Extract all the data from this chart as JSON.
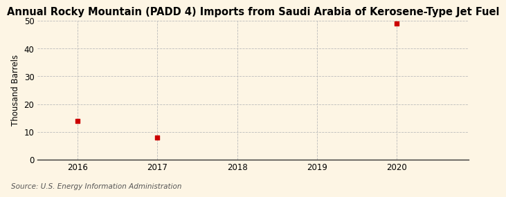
{
  "title": "Annual Rocky Mountain (PADD 4) Imports from Saudi Arabia of Kerosene-Type Jet Fuel",
  "ylabel": "Thousand Barrels",
  "source": "Source: U.S. Energy Information Administration",
  "x_values": [
    2016,
    2017,
    2020
  ],
  "y_values": [
    14,
    8,
    49
  ],
  "xlim": [
    2015.5,
    2020.9
  ],
  "ylim": [
    0,
    50
  ],
  "yticks": [
    0,
    10,
    20,
    30,
    40,
    50
  ],
  "xticks": [
    2016,
    2017,
    2018,
    2019,
    2020
  ],
  "marker_color": "#cc0000",
  "marker_size": 5,
  "background_color": "#fdf5e4",
  "plot_bg_color": "#ffffff",
  "grid_color": "#bbbbbb",
  "title_fontsize": 10.5,
  "label_fontsize": 8.5,
  "tick_fontsize": 8.5,
  "source_fontsize": 7.5
}
